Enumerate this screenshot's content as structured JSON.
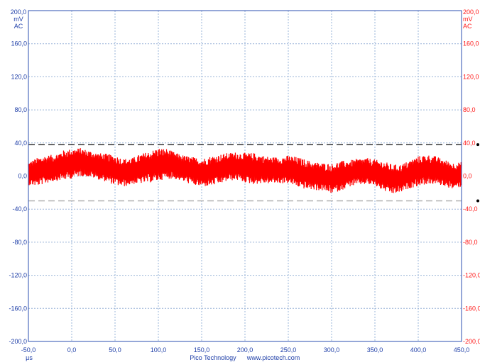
{
  "chart_data": {
    "type": "line",
    "title": "",
    "left_axis": {
      "top_label": "200,0",
      "units": "mV",
      "coupling": "AC",
      "ylim": [
        -200,
        200
      ],
      "ticks": [
        "200,0",
        "160,0",
        "120,0",
        "80,0",
        "40,0",
        "0,0",
        "-40,0",
        "-80,0",
        "-120,0",
        "-160,0",
        "-200,0"
      ]
    },
    "right_axis": {
      "top_label": "200,0",
      "units": "mV",
      "coupling": "AC",
      "ticks": [
        "200,0",
        "160,0",
        "120,0",
        "80,0",
        "40,0",
        "0,0",
        "-40,0",
        "-80,0",
        "-120,0",
        "-160,0",
        "-200,0"
      ]
    },
    "x_axis": {
      "unit": "µs",
      "xlim": [
        -50,
        450
      ],
      "ticks": [
        "-50,0",
        "0,0",
        "50,0",
        "100,0",
        "150,0",
        "200,0",
        "250,0",
        "300,0",
        "350,0",
        "400,0",
        "450,0"
      ]
    },
    "thresholds": {
      "upper": 38,
      "lower": -30,
      "upper_color": "#333333",
      "lower_color": "#b0b0b0"
    },
    "series": [
      {
        "color": "#ff0000",
        "x": [
          -50,
          -40,
          -30,
          -20,
          -10,
          0,
          10,
          20,
          30,
          40,
          50,
          60,
          70,
          80,
          90,
          100,
          110,
          120,
          130,
          140,
          150,
          160,
          170,
          180,
          190,
          200,
          210,
          220,
          230,
          240,
          250,
          260,
          270,
          280,
          290,
          300,
          310,
          320,
          330,
          340,
          350,
          360,
          370,
          380,
          390,
          400,
          410,
          420,
          430,
          440,
          450
        ],
        "center": [
          3,
          5,
          8,
          10,
          13,
          15,
          17,
          15,
          12,
          10,
          7,
          4,
          6,
          9,
          11,
          14,
          15,
          12,
          9,
          6,
          4,
          6,
          8,
          11,
          12,
          10,
          9,
          8,
          7,
          7,
          8,
          5,
          2,
          0,
          -1,
          -3,
          0,
          3,
          5,
          6,
          4,
          0,
          -4,
          -3,
          2,
          6,
          8,
          7,
          4,
          0,
          2
        ],
        "amplitude": [
          14,
          17,
          17,
          16,
          18,
          18,
          17,
          16,
          16,
          17,
          18,
          17,
          16,
          18,
          19,
          20,
          18,
          16,
          16,
          17,
          17,
          18,
          18,
          17,
          17,
          18,
          19,
          17,
          16,
          16,
          17,
          18,
          18,
          17,
          17,
          18,
          18,
          16,
          16,
          16,
          16,
          18,
          18,
          17,
          17,
          18,
          18,
          17,
          16,
          16,
          15
        ]
      }
    ],
    "grid": true
  },
  "footer": {
    "brand": "Pico Technology",
    "url": "www.picotech.com"
  },
  "colors": {
    "left_axis": "#1f3fa8",
    "right_axis": "#ff1a1a",
    "grid": "#9ab4d8",
    "frame": "#2b4fb0",
    "trace": "#ff0000"
  }
}
